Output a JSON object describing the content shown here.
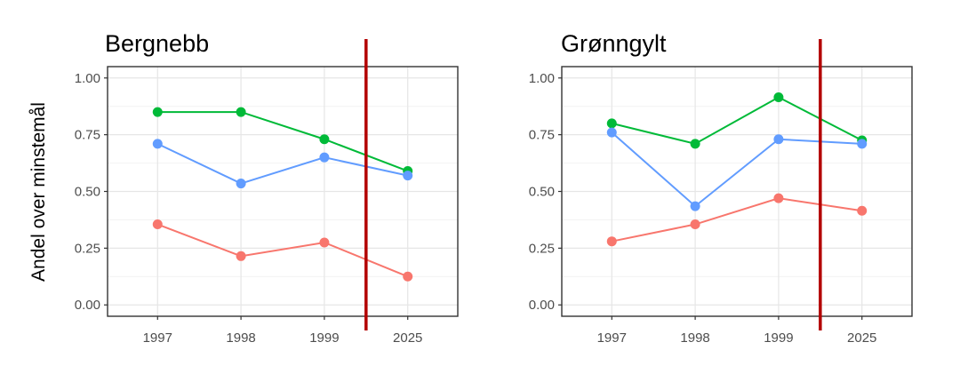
{
  "chart_data": {
    "type": "line",
    "ylabel": "Andel over minstemål",
    "xlabel": "",
    "categories": [
      "1997",
      "1998",
      "1999",
      "2025"
    ],
    "ylim": [
      -0.05,
      1.05
    ],
    "yticks": [
      "0.00",
      "0.25",
      "0.50",
      "0.75",
      "1.00"
    ],
    "grid": true,
    "legend": "none",
    "vline_after_category": "1999",
    "vline_color": "#b30000",
    "series_colors": [
      "#00BA38",
      "#619CFF",
      "#F8766D"
    ],
    "panels": [
      {
        "title": "Bergnebb",
        "series": [
          {
            "color": "#00BA38",
            "values": [
              0.85,
              0.85,
              0.73,
              0.59
            ]
          },
          {
            "color": "#619CFF",
            "values": [
              0.71,
              0.535,
              0.65,
              0.57
            ]
          },
          {
            "color": "#F8766D",
            "values": [
              0.355,
              0.215,
              0.275,
              0.125
            ]
          }
        ]
      },
      {
        "title": "Grønngylt",
        "series": [
          {
            "color": "#00BA38",
            "values": [
              0.8,
              0.71,
              0.915,
              0.725
            ]
          },
          {
            "color": "#619CFF",
            "values": [
              0.76,
              0.435,
              0.73,
              0.71
            ]
          },
          {
            "color": "#F8766D",
            "values": [
              0.28,
              0.355,
              0.47,
              0.415
            ]
          }
        ]
      }
    ]
  }
}
